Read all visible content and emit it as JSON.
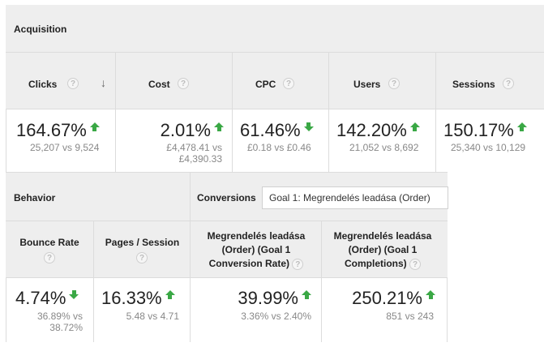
{
  "acquisition": {
    "title": "Acquisition",
    "columns": [
      {
        "label": "Clicks",
        "value": "164.67%",
        "compare": "25,207 vs 9,524",
        "trend": "up"
      },
      {
        "label": "Cost",
        "value": "2.01%",
        "compare_line1": "£4,478.41 vs",
        "compare_line2": "£4,390.33",
        "trend": "up"
      },
      {
        "label": "CPC",
        "value": "61.46%",
        "compare": "£0.18 vs £0.46",
        "trend": "down"
      },
      {
        "label": "Users",
        "value": "142.20%",
        "compare": "21,052 vs 8,692",
        "trend": "up"
      },
      {
        "label": "Sessions",
        "value": "150.17%",
        "compare": "25,340 vs 10,129",
        "trend": "up"
      }
    ]
  },
  "behavior": {
    "title": "Behavior",
    "columns": [
      {
        "label": "Bounce Rate",
        "value": "4.74%",
        "compare_line1": "36.89% vs",
        "compare_line2": "38.72%",
        "trend": "down"
      },
      {
        "label": "Pages / Session",
        "value": "16.33%",
        "compare": "5.48 vs 4.71",
        "trend": "up"
      }
    ]
  },
  "conversions": {
    "title": "Conversions",
    "goal_selected": "Goal 1: Megrendelés leadása (Order)",
    "columns": [
      {
        "label_line1": "Megrendelés leadása",
        "label_line2": "(Order) (Goal 1",
        "label_line3": "Conversion Rate)",
        "value": "39.99%",
        "compare": "3.36% vs 2.40%",
        "trend": "up"
      },
      {
        "label_line1": "Megrendelés leadása",
        "label_line2": "(Order) (Goal 1",
        "label_line3": "Completions)",
        "value": "250.21%",
        "compare": "851 vs 243",
        "trend": "up"
      }
    ]
  },
  "help_symbol": "?",
  "sort_symbol": "↓",
  "colors": {
    "trend": "#3aa845",
    "header_bg": "#eeeeee"
  }
}
